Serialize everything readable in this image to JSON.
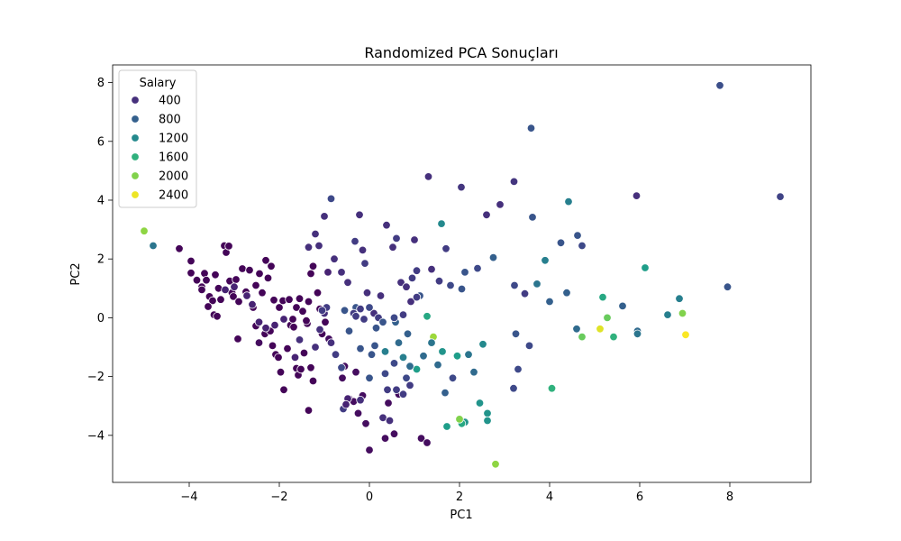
{
  "chart_data": {
    "type": "scatter",
    "title": "Randomized PCA Sonuçları",
    "xlabel": "PC1",
    "ylabel": "PC2",
    "xlim": [
      -5.7,
      9.8
    ],
    "ylim": [
      -5.6,
      8.6
    ],
    "xticks": [
      -4,
      -2,
      0,
      2,
      4,
      6,
      8
    ],
    "yticks": [
      -4,
      -2,
      0,
      2,
      4,
      6,
      8
    ],
    "grid": false,
    "legend": {
      "title": "Salary",
      "placement": "top-left",
      "entries": [
        {
          "label": "400",
          "value": 400
        },
        {
          "label": "800",
          "value": 800
        },
        {
          "label": "1200",
          "value": 1200
        },
        {
          "label": "1600",
          "value": 1600
        },
        {
          "label": "2000",
          "value": 2000
        },
        {
          "label": "2400",
          "value": 2400
        }
      ]
    },
    "colormap": {
      "name": "viridis",
      "min": 70,
      "max": 2460,
      "stops": [
        "#440154",
        "#482878",
        "#3e4989",
        "#31688e",
        "#26828e",
        "#1f9e89",
        "#35b779",
        "#6ece58",
        "#b5de2b",
        "#fde725"
      ]
    },
    "points": [
      {
        "x": 7.78,
        "y": 7.9,
        "salary": 650
      },
      {
        "x": 9.12,
        "y": 4.12,
        "salary": 550
      },
      {
        "x": 3.59,
        "y": 6.45,
        "salary": 700
      },
      {
        "x": 7.95,
        "y": 1.05,
        "salary": 700
      },
      {
        "x": 5.93,
        "y": 4.15,
        "salary": 400
      },
      {
        "x": 1.31,
        "y": 4.8,
        "salary": 400
      },
      {
        "x": 2.04,
        "y": 4.44,
        "salary": 450
      },
      {
        "x": 3.21,
        "y": 4.63,
        "salary": 450
      },
      {
        "x": -5.0,
        "y": 2.95,
        "salary": 2050
      },
      {
        "x": -4.8,
        "y": 2.45,
        "salary": 1000
      },
      {
        "x": -4.22,
        "y": 2.35,
        "salary": 100
      },
      {
        "x": -3.96,
        "y": 1.93,
        "salary": 100
      },
      {
        "x": -3.96,
        "y": 1.52,
        "salary": 100
      },
      {
        "x": -3.83,
        "y": 1.28,
        "salary": 100
      },
      {
        "x": -3.72,
        "y": 1.05,
        "salary": 100
      },
      {
        "x": -3.66,
        "y": 1.51,
        "salary": 100
      },
      {
        "x": -3.62,
        "y": 1.28,
        "salary": 100
      },
      {
        "x": -3.55,
        "y": 0.72,
        "salary": 100
      },
      {
        "x": -3.48,
        "y": 0.58,
        "salary": 100
      },
      {
        "x": -3.42,
        "y": 1.46,
        "salary": 100
      },
      {
        "x": -3.35,
        "y": 1.0,
        "salary": 100
      },
      {
        "x": -3.3,
        "y": 0.62,
        "salary": 100
      },
      {
        "x": -3.22,
        "y": 2.45,
        "salary": 100
      },
      {
        "x": -3.18,
        "y": 2.22,
        "salary": 100
      },
      {
        "x": -3.12,
        "y": 2.44,
        "salary": 100
      },
      {
        "x": -3.1,
        "y": 1.25,
        "salary": 100
      },
      {
        "x": -3.05,
        "y": 0.85,
        "salary": 100
      },
      {
        "x": -3.02,
        "y": 0.72,
        "salary": 100
      },
      {
        "x": -2.96,
        "y": 1.3,
        "salary": 100
      },
      {
        "x": -2.9,
        "y": 0.55,
        "salary": 100
      },
      {
        "x": -2.82,
        "y": 1.67,
        "salary": 100
      },
      {
        "x": -2.74,
        "y": 0.88,
        "salary": 100
      },
      {
        "x": -2.66,
        "y": 1.62,
        "salary": 100
      },
      {
        "x": -2.58,
        "y": 0.35,
        "salary": 100
      },
      {
        "x": -2.52,
        "y": 1.1,
        "salary": 100
      },
      {
        "x": -2.44,
        "y": 1.5,
        "salary": 100
      },
      {
        "x": -2.38,
        "y": 0.85,
        "salary": 100
      },
      {
        "x": -2.3,
        "y": 1.95,
        "salary": 100
      },
      {
        "x": -2.25,
        "y": 1.35,
        "salary": 100
      },
      {
        "x": -2.18,
        "y": 1.75,
        "salary": 100
      },
      {
        "x": -3.72,
        "y": 0.95,
        "salary": 100
      },
      {
        "x": -3.45,
        "y": 0.1,
        "salary": 100
      },
      {
        "x": -3.38,
        "y": 0.05,
        "salary": 100
      },
      {
        "x": -3.58,
        "y": 0.38,
        "salary": 100
      },
      {
        "x": -2.92,
        "y": -0.72,
        "salary": 100
      },
      {
        "x": -2.52,
        "y": -0.28,
        "salary": 100
      },
      {
        "x": -2.45,
        "y": -0.85,
        "salary": 150
      },
      {
        "x": -2.32,
        "y": -0.55,
        "salary": 100
      },
      {
        "x": -2.2,
        "y": -0.45,
        "salary": 100
      },
      {
        "x": -2.15,
        "y": -0.95,
        "salary": 100
      },
      {
        "x": -2.08,
        "y": -1.25,
        "salary": 100
      },
      {
        "x": -2.02,
        "y": -1.35,
        "salary": 100
      },
      {
        "x": -1.97,
        "y": -1.85,
        "salary": 100
      },
      {
        "x": -1.9,
        "y": -2.45,
        "salary": 100
      },
      {
        "x": -1.82,
        "y": -1.05,
        "salary": 100
      },
      {
        "x": -1.75,
        "y": -0.25,
        "salary": 100
      },
      {
        "x": -1.68,
        "y": -0.32,
        "salary": 100
      },
      {
        "x": -1.62,
        "y": -1.72,
        "salary": 100
      },
      {
        "x": -1.58,
        "y": -1.95,
        "salary": 100
      },
      {
        "x": -1.52,
        "y": -1.75,
        "salary": 100
      },
      {
        "x": -1.45,
        "y": -1.2,
        "salary": 100
      },
      {
        "x": -1.38,
        "y": -0.2,
        "salary": 100
      },
      {
        "x": -1.3,
        "y": -1.7,
        "salary": 100
      },
      {
        "x": -1.25,
        "y": -2.15,
        "salary": 100
      },
      {
        "x": -1.35,
        "y": -3.15,
        "salary": 100
      },
      {
        "x": -2.12,
        "y": 0.6,
        "salary": 100
      },
      {
        "x": -2.0,
        "y": 0.35,
        "salary": 100
      },
      {
        "x": -1.92,
        "y": 0.58,
        "salary": 100
      },
      {
        "x": -1.78,
        "y": 0.62,
        "salary": 100
      },
      {
        "x": -1.7,
        "y": -0.05,
        "salary": 100
      },
      {
        "x": -1.62,
        "y": 0.35,
        "salary": 100
      },
      {
        "x": -1.55,
        "y": 0.65,
        "salary": 100
      },
      {
        "x": -1.48,
        "y": 0.22,
        "salary": 100
      },
      {
        "x": -1.4,
        "y": -0.1,
        "salary": 100
      },
      {
        "x": -1.35,
        "y": 0.55,
        "salary": 100
      },
      {
        "x": -1.3,
        "y": 1.5,
        "salary": 100
      },
      {
        "x": -1.25,
        "y": 1.75,
        "salary": 100
      },
      {
        "x": -1.15,
        "y": 0.85,
        "salary": 100
      },
      {
        "x": -1.1,
        "y": 0.3,
        "salary": 100
      },
      {
        "x": -1.05,
        "y": -0.55,
        "salary": 100
      },
      {
        "x": -0.98,
        "y": -0.15,
        "salary": 100
      },
      {
        "x": -0.9,
        "y": -0.72,
        "salary": 150
      },
      {
        "x": -0.6,
        "y": -2.05,
        "salary": 150
      },
      {
        "x": -0.55,
        "y": -1.65,
        "salary": 150
      },
      {
        "x": -0.45,
        "y": -2.75,
        "salary": 150
      },
      {
        "x": -0.35,
        "y": -2.85,
        "salary": 150
      },
      {
        "x": -0.3,
        "y": -1.85,
        "salary": 150
      },
      {
        "x": -0.25,
        "y": -3.25,
        "salary": 150
      },
      {
        "x": -0.15,
        "y": -2.65,
        "salary": 150
      },
      {
        "x": -0.08,
        "y": -3.6,
        "salary": 150
      },
      {
        "x": 0.0,
        "y": -4.5,
        "salary": 150
      },
      {
        "x": 0.35,
        "y": -4.1,
        "salary": 150
      },
      {
        "x": 0.55,
        "y": -3.95,
        "salary": 150
      },
      {
        "x": 0.65,
        "y": -2.6,
        "salary": 150
      },
      {
        "x": 0.42,
        "y": -2.9,
        "salary": 150
      },
      {
        "x": 1.15,
        "y": -4.1,
        "salary": 150
      },
      {
        "x": 1.28,
        "y": -4.25,
        "salary": 150
      },
      {
        "x": -0.92,
        "y": 1.55,
        "salary": 300
      },
      {
        "x": -0.85,
        "y": 4.05,
        "salary": 600
      },
      {
        "x": -1.0,
        "y": 3.45,
        "salary": 400
      },
      {
        "x": -1.2,
        "y": 2.85,
        "salary": 400
      },
      {
        "x": -1.12,
        "y": 2.45,
        "salary": 400
      },
      {
        "x": -1.35,
        "y": 2.4,
        "salary": 400
      },
      {
        "x": -0.78,
        "y": 2.0,
        "salary": 400
      },
      {
        "x": -0.62,
        "y": 1.55,
        "salary": 400
      },
      {
        "x": -0.48,
        "y": 1.2,
        "salary": 400
      },
      {
        "x": -0.32,
        "y": 2.6,
        "salary": 500
      },
      {
        "x": -0.22,
        "y": 3.5,
        "salary": 400
      },
      {
        "x": -0.15,
        "y": 2.3,
        "salary": 400
      },
      {
        "x": -0.1,
        "y": 1.85,
        "salary": 500
      },
      {
        "x": -0.05,
        "y": 0.85,
        "salary": 400
      },
      {
        "x": 0.1,
        "y": 0.15,
        "salary": 400
      },
      {
        "x": 0.2,
        "y": 0.0,
        "salary": 500
      },
      {
        "x": 0.25,
        "y": 0.75,
        "salary": 400
      },
      {
        "x": 0.38,
        "y": 3.15,
        "salary": 400
      },
      {
        "x": 0.52,
        "y": 2.4,
        "salary": 400
      },
      {
        "x": 0.6,
        "y": 2.7,
        "salary": 500
      },
      {
        "x": 0.7,
        "y": 1.2,
        "salary": 400
      },
      {
        "x": 0.82,
        "y": 1.05,
        "salary": 400
      },
      {
        "x": 0.92,
        "y": 0.55,
        "salary": 400
      },
      {
        "x": 1.0,
        "y": 2.65,
        "salary": 400
      },
      {
        "x": 1.05,
        "y": 1.6,
        "salary": 500
      },
      {
        "x": 1.12,
        "y": 0.75,
        "salary": 700
      },
      {
        "x": 1.38,
        "y": 1.65,
        "salary": 400
      },
      {
        "x": 1.55,
        "y": 1.25,
        "salary": 500
      },
      {
        "x": 1.7,
        "y": 2.35,
        "salary": 500
      },
      {
        "x": 1.8,
        "y": 1.1,
        "salary": 600
      },
      {
        "x": 2.05,
        "y": 0.98,
        "salary": 700
      },
      {
        "x": 2.12,
        "y": 1.55,
        "salary": 700
      },
      {
        "x": 2.4,
        "y": 1.68,
        "salary": 600
      },
      {
        "x": 2.6,
        "y": 3.5,
        "salary": 400
      },
      {
        "x": 2.75,
        "y": 2.05,
        "salary": 800
      },
      {
        "x": 2.9,
        "y": 3.85,
        "salary": 400
      },
      {
        "x": 3.22,
        "y": 1.1,
        "salary": 600
      },
      {
        "x": 3.45,
        "y": 0.82,
        "salary": 500
      },
      {
        "x": 3.62,
        "y": 3.42,
        "salary": 700
      },
      {
        "x": 3.72,
        "y": 1.15,
        "salary": 1000
      },
      {
        "x": 3.9,
        "y": 1.95,
        "salary": 1100
      },
      {
        "x": 4.0,
        "y": 0.55,
        "salary": 800
      },
      {
        "x": 4.25,
        "y": 2.55,
        "salary": 700
      },
      {
        "x": 4.38,
        "y": 0.85,
        "salary": 800
      },
      {
        "x": 4.42,
        "y": 3.95,
        "salary": 1100
      },
      {
        "x": 4.62,
        "y": 2.8,
        "salary": 700
      },
      {
        "x": 4.72,
        "y": 2.45,
        "salary": 600
      },
      {
        "x": 5.62,
        "y": 0.4,
        "salary": 800
      },
      {
        "x": 6.12,
        "y": 1.7,
        "salary": 1400
      },
      {
        "x": 6.62,
        "y": 0.1,
        "salary": 1100
      },
      {
        "x": 6.88,
        "y": 0.65,
        "salary": 1100
      },
      {
        "x": 5.95,
        "y": -0.45,
        "salary": 900
      },
      {
        "x": 5.95,
        "y": -0.55,
        "salary": 1000
      },
      {
        "x": 6.95,
        "y": 0.15,
        "salary": 2000
      },
      {
        "x": 7.02,
        "y": -0.58,
        "salary": 2450
      },
      {
        "x": 5.12,
        "y": -0.38,
        "salary": 2350
      },
      {
        "x": 5.18,
        "y": 0.7,
        "salary": 1500
      },
      {
        "x": 5.28,
        "y": 0.0,
        "salary": 1900
      },
      {
        "x": 5.42,
        "y": -0.65,
        "salary": 1600
      },
      {
        "x": 4.72,
        "y": -0.65,
        "salary": 1900
      },
      {
        "x": 4.6,
        "y": -0.38,
        "salary": 900
      },
      {
        "x": 4.05,
        "y": -2.4,
        "salary": 1600
      },
      {
        "x": 3.55,
        "y": -0.95,
        "salary": 600
      },
      {
        "x": 3.25,
        "y": -0.55,
        "salary": 700
      },
      {
        "x": 3.3,
        "y": -1.75,
        "salary": 600
      },
      {
        "x": 3.2,
        "y": -2.4,
        "salary": 600
      },
      {
        "x": 2.62,
        "y": -3.25,
        "salary": 1300
      },
      {
        "x": 2.62,
        "y": -3.5,
        "salary": 1300
      },
      {
        "x": 2.8,
        "y": -4.98,
        "salary": 2050
      },
      {
        "x": 2.45,
        "y": -2.9,
        "salary": 1300
      },
      {
        "x": 2.32,
        "y": -1.85,
        "salary": 900
      },
      {
        "x": 2.52,
        "y": -0.9,
        "salary": 1200
      },
      {
        "x": 2.2,
        "y": -1.25,
        "salary": 1000
      },
      {
        "x": 2.12,
        "y": -3.55,
        "salary": 1300
      },
      {
        "x": 2.05,
        "y": -3.6,
        "salary": 1500
      },
      {
        "x": 2.0,
        "y": -3.45,
        "salary": 2000
      },
      {
        "x": 1.95,
        "y": -1.3,
        "salary": 1400
      },
      {
        "x": 1.72,
        "y": -3.7,
        "salary": 1400
      },
      {
        "x": 1.68,
        "y": -2.55,
        "salary": 800
      },
      {
        "x": 1.62,
        "y": -1.15,
        "salary": 1300
      },
      {
        "x": 1.52,
        "y": -1.6,
        "salary": 900
      },
      {
        "x": 1.42,
        "y": -0.65,
        "salary": 2100
      },
      {
        "x": 1.38,
        "y": -0.85,
        "salary": 1000
      },
      {
        "x": 1.28,
        "y": 0.05,
        "salary": 1500
      },
      {
        "x": 1.2,
        "y": -1.3,
        "salary": 900
      },
      {
        "x": 1.05,
        "y": -1.75,
        "salary": 1400
      },
      {
        "x": 0.9,
        "y": -1.65,
        "salary": 900
      },
      {
        "x": 0.82,
        "y": -2.05,
        "salary": 600
      },
      {
        "x": 0.75,
        "y": -1.35,
        "salary": 1100
      },
      {
        "x": 0.85,
        "y": -0.55,
        "salary": 800
      },
      {
        "x": 0.65,
        "y": -0.85,
        "salary": 900
      },
      {
        "x": 0.58,
        "y": -0.15,
        "salary": 800
      },
      {
        "x": 0.35,
        "y": -1.15,
        "salary": 1100
      },
      {
        "x": 0.3,
        "y": -0.15,
        "salary": 700
      },
      {
        "x": 0.12,
        "y": -0.95,
        "salary": 700
      },
      {
        "x": 0.05,
        "y": -1.25,
        "salary": 700
      },
      {
        "x": 0.0,
        "y": -2.05,
        "salary": 700
      },
      {
        "x": -0.2,
        "y": -1.05,
        "salary": 700
      },
      {
        "x": -0.3,
        "y": 0.35,
        "salary": 700
      },
      {
        "x": -0.45,
        "y": -0.45,
        "salary": 700
      },
      {
        "x": -0.55,
        "y": 0.25,
        "salary": 700
      },
      {
        "x": -0.62,
        "y": -1.7,
        "salary": 600
      },
      {
        "x": -0.58,
        "y": -3.1,
        "salary": 500
      },
      {
        "x": -0.35,
        "y": 0.15,
        "salary": 500
      },
      {
        "x": -0.2,
        "y": 0.3,
        "salary": 500
      },
      {
        "x": -0.12,
        "y": -0.05,
        "salary": 500
      },
      {
        "x": -0.75,
        "y": -1.25,
        "salary": 500
      },
      {
        "x": -0.85,
        "y": -0.85,
        "salary": 400
      },
      {
        "x": -1.0,
        "y": 0.15,
        "salary": 400
      },
      {
        "x": -1.1,
        "y": -0.4,
        "salary": 400
      },
      {
        "x": -1.2,
        "y": -1.0,
        "salary": 400
      },
      {
        "x": -1.55,
        "y": -0.75,
        "salary": 400
      },
      {
        "x": -1.65,
        "y": -1.35,
        "salary": 300
      },
      {
        "x": -1.9,
        "y": -0.05,
        "salary": 300
      },
      {
        "x": -2.1,
        "y": -0.25,
        "salary": 300
      },
      {
        "x": -2.3,
        "y": -0.35,
        "salary": 300
      },
      {
        "x": -2.45,
        "y": -0.15,
        "salary": 300
      },
      {
        "x": -2.6,
        "y": 0.45,
        "salary": 300
      },
      {
        "x": -2.72,
        "y": 0.75,
        "salary": 300
      },
      {
        "x": -3.0,
        "y": 1.05,
        "salary": 300
      },
      {
        "x": -3.2,
        "y": 0.95,
        "salary": 300
      },
      {
        "x": -0.95,
        "y": 0.35,
        "salary": 500
      },
      {
        "x": -1.05,
        "y": 0.25,
        "salary": 500
      },
      {
        "x": -0.48,
        "y": -2.75,
        "salary": 300
      },
      {
        "x": -0.52,
        "y": -2.95,
        "salary": 300
      },
      {
        "x": 0.3,
        "y": -3.4,
        "salary": 400
      },
      {
        "x": 0.4,
        "y": -2.45,
        "salary": 500
      },
      {
        "x": 0.45,
        "y": -3.5,
        "salary": 400
      },
      {
        "x": 0.6,
        "y": -2.45,
        "salary": 500
      },
      {
        "x": 0.75,
        "y": -2.6,
        "salary": 500
      },
      {
        "x": 0.9,
        "y": -2.3,
        "salary": 500
      },
      {
        "x": -0.2,
        "y": -2.8,
        "salary": 400
      },
      {
        "x": 0.15,
        "y": -0.35,
        "salary": 700
      },
      {
        "x": 0.35,
        "y": -1.9,
        "salary": 600
      },
      {
        "x": 0.55,
        "y": -1.55,
        "salary": 600
      },
      {
        "x": 1.05,
        "y": 0.7,
        "salary": 500
      },
      {
        "x": 0.95,
        "y": 1.35,
        "salary": 500
      },
      {
        "x": 1.6,
        "y": 3.2,
        "salary": 1200
      },
      {
        "x": 1.85,
        "y": -2.05,
        "salary": 600
      },
      {
        "x": 0.0,
        "y": 0.35,
        "salary": 600
      },
      {
        "x": -0.3,
        "y": 0.05,
        "salary": 500
      },
      {
        "x": 0.75,
        "y": 0.1,
        "salary": 500
      },
      {
        "x": 0.55,
        "y": 0.0,
        "salary": 600
      }
    ]
  }
}
